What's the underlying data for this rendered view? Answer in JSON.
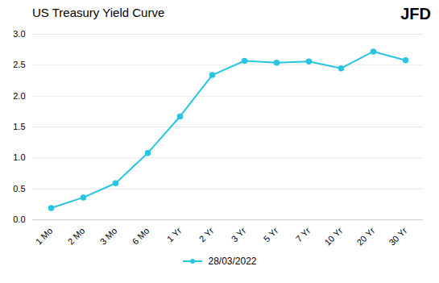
{
  "chart_data": {
    "type": "line",
    "title": "US Treasury Yield Curve",
    "annotations": [
      "JFD"
    ],
    "categories": [
      "1 Mo",
      "2 Mo",
      "3 Mo",
      "6 Mo",
      "1 Yr",
      "2 Yr",
      "3 Yr",
      "5 Yr",
      "7 Yr",
      "10 Yr",
      "20 Yr",
      "30 Yr"
    ],
    "series": [
      {
        "name": "28/03/2022",
        "color": "#29C4E0",
        "marker": "circle",
        "values": [
          0.19,
          0.36,
          0.59,
          1.08,
          1.67,
          2.34,
          2.57,
          2.54,
          2.56,
          2.45,
          2.72,
          2.58
        ]
      }
    ],
    "ylim": [
      0.0,
      3.0
    ],
    "yticks": [
      {
        "value": 0,
        "label": "0.0"
      },
      0.5,
      {
        "value": 1,
        "label": "1.0"
      },
      1.5,
      {
        "value": 2,
        "label": "2.0"
      },
      2.5,
      {
        "value": 3,
        "label": "3.0"
      }
    ],
    "grid": true,
    "legend": "bottom"
  }
}
